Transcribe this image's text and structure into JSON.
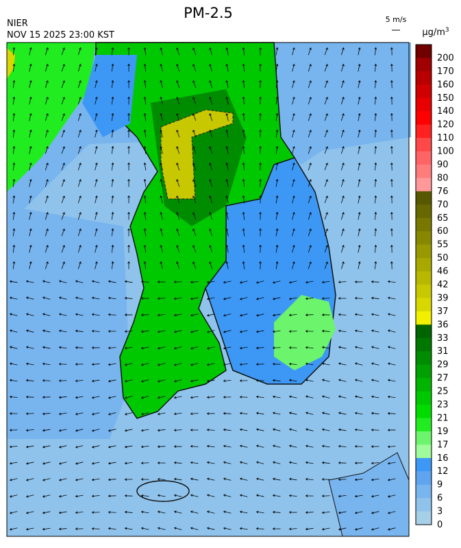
{
  "header": {
    "title": "PM-2.5",
    "agency": "NIER",
    "timestamp": "NOV 15 2025 23:00 KST",
    "wind_reference": "5 m/s"
  },
  "colorbar": {
    "unit": "μg/m",
    "unit_superscript": "3",
    "levels": [
      {
        "label": 200,
        "color": "#700000"
      },
      {
        "label": 170,
        "color": "#a00000"
      },
      {
        "label": 160,
        "color": "#b80000"
      },
      {
        "label": 150,
        "color": "#d00000"
      },
      {
        "label": 140,
        "color": "#e80000"
      },
      {
        "label": 120,
        "color": "#ff0000"
      },
      {
        "label": 110,
        "color": "#ff2020"
      },
      {
        "label": 100,
        "color": "#ff4848"
      },
      {
        "label": 90,
        "color": "#ff6464"
      },
      {
        "label": 80,
        "color": "#ff7c7c"
      },
      {
        "label": 76,
        "color": "#ff9898"
      },
      {
        "label": 70,
        "color": "#585800"
      },
      {
        "label": 65,
        "color": "#686800"
      },
      {
        "label": 60,
        "color": "#787800"
      },
      {
        "label": 55,
        "color": "#888800"
      },
      {
        "label": 50,
        "color": "#989800"
      },
      {
        "label": 46,
        "color": "#a8a800"
      },
      {
        "label": 42,
        "color": "#b8b800"
      },
      {
        "label": 39,
        "color": "#c8c800"
      },
      {
        "label": 37,
        "color": "#d8d800"
      },
      {
        "label": 36,
        "color": "#f0f000"
      },
      {
        "label": 33,
        "color": "#006400"
      },
      {
        "label": 31,
        "color": "#007800"
      },
      {
        "label": 29,
        "color": "#008c00"
      },
      {
        "label": 27,
        "color": "#00a000"
      },
      {
        "label": 25,
        "color": "#00b400"
      },
      {
        "label": 23,
        "color": "#00c800"
      },
      {
        "label": 21,
        "color": "#00dc00"
      },
      {
        "label": 19,
        "color": "#20ec20"
      },
      {
        "label": 17,
        "color": "#6cf46c"
      },
      {
        "label": 16,
        "color": "#a0fc9a"
      },
      {
        "label": 12,
        "color": "#3d98f5"
      },
      {
        "label": 9,
        "color": "#5fa4ee"
      },
      {
        "label": 6,
        "color": "#78b4ee"
      },
      {
        "label": 3,
        "color": "#8fc3ec"
      },
      {
        "label": 0,
        "color": "#a6cfe8"
      }
    ]
  }
}
